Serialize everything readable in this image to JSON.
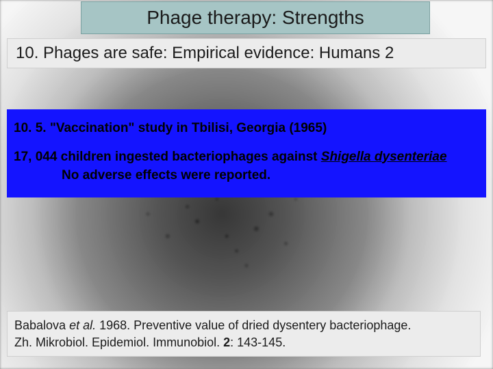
{
  "title": "Phage therapy: Strengths",
  "subtitle": "10. Phages are safe: Empirical evidence: Humans 2",
  "content": {
    "heading": "10. 5. \"Vaccination\" study in Tbilisi, Georgia (1965)",
    "line1_prefix": "17, 044 children ingested bacteriophages against ",
    "line1_species": "Shigella dysenteriae",
    "line2": "No adverse effects were reported."
  },
  "citation": {
    "authors_prefix": "Babalova ",
    "etal": "et al.",
    "year_title": " 1968. Preventive value of dried dysentery bacteriophage.",
    "journal": "Zh. Mikrobiol. Epidemiol. Immunobiol. ",
    "volume": "2",
    "pages": ": 143-145."
  },
  "colors": {
    "title_bg": "#a6c5c5",
    "subtitle_bg": "#ececec",
    "content_bg": "#1414ff",
    "citation_bg": "#ececec"
  }
}
